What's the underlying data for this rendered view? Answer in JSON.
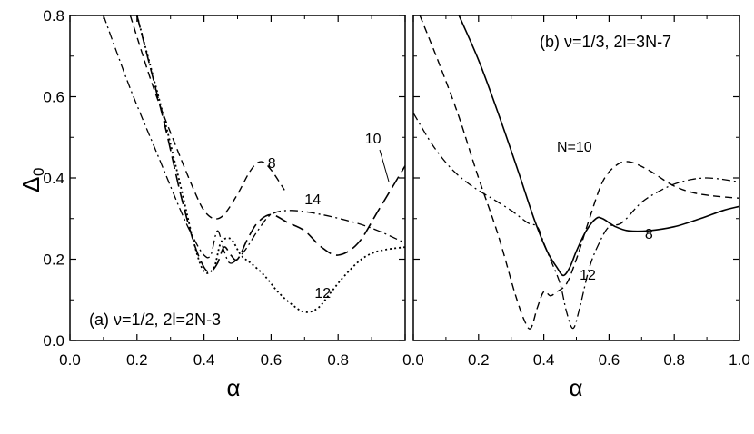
{
  "chart_data": [
    {
      "type": "line",
      "panel": "a",
      "panel_label": "(a) ν=1/2, 2l=2N-3",
      "xlabel": "α",
      "ylabel": "Δ",
      "ylabel_sub": "0",
      "xlim": [
        0.0,
        1.0
      ],
      "ylim": [
        0.0,
        0.8
      ],
      "x_ticks": [
        "0.0",
        "0.2",
        "0.4",
        "0.6",
        "0.8"
      ],
      "y_ticks": [
        "0.0",
        "0.2",
        "0.4",
        "0.6",
        "0.8"
      ],
      "grid": false,
      "series": [
        {
          "name": "8",
          "style": "dashed",
          "x": [
            0.18,
            0.25,
            0.32,
            0.37,
            0.4,
            0.43,
            0.46,
            0.5,
            0.54,
            0.57,
            0.6,
            0.64
          ],
          "y": [
            0.8,
            0.62,
            0.47,
            0.37,
            0.32,
            0.3,
            0.31,
            0.36,
            0.42,
            0.44,
            0.42,
            0.37
          ]
        },
        {
          "name": "10",
          "style": "dash-dot",
          "x": [
            0.1,
            0.18,
            0.26,
            0.33,
            0.37,
            0.4,
            0.42,
            0.44,
            0.46,
            0.48,
            0.52,
            0.56,
            0.6,
            0.66,
            0.75,
            0.85,
            0.92,
            1.0
          ],
          "y": [
            0.8,
            0.62,
            0.46,
            0.32,
            0.25,
            0.21,
            0.21,
            0.27,
            0.22,
            0.19,
            0.22,
            0.27,
            0.31,
            0.32,
            0.31,
            0.29,
            0.27,
            0.24
          ]
        },
        {
          "name": "12",
          "style": "dotted",
          "x": [
            0.2,
            0.28,
            0.33,
            0.37,
            0.4,
            0.43,
            0.45,
            0.48,
            0.51,
            0.54,
            0.58,
            0.62,
            0.66,
            0.7,
            0.74,
            0.78,
            0.82,
            0.87,
            0.92,
            1.0
          ],
          "y": [
            0.8,
            0.55,
            0.38,
            0.24,
            0.17,
            0.18,
            0.24,
            0.25,
            0.21,
            0.19,
            0.16,
            0.12,
            0.09,
            0.07,
            0.08,
            0.12,
            0.16,
            0.2,
            0.22,
            0.23
          ]
        },
        {
          "name": "14",
          "style": "long-dash",
          "x": [
            0.2,
            0.28,
            0.33,
            0.37,
            0.4,
            0.42,
            0.44,
            0.46,
            0.48,
            0.5,
            0.53,
            0.56,
            0.6,
            0.65,
            0.7,
            0.75,
            0.8,
            0.86,
            0.92,
            1.0
          ],
          "y": [
            0.8,
            0.54,
            0.36,
            0.24,
            0.18,
            0.17,
            0.19,
            0.23,
            0.21,
            0.2,
            0.25,
            0.29,
            0.31,
            0.29,
            0.27,
            0.23,
            0.21,
            0.24,
            0.32,
            0.43
          ]
        }
      ],
      "curve_labels": [
        {
          "text": "8",
          "x": 0.59,
          "y": 0.425
        },
        {
          "text": "10",
          "x": 0.88,
          "y": 0.485
        },
        {
          "text": "14",
          "x": 0.7,
          "y": 0.335
        },
        {
          "text": "12",
          "x": 0.73,
          "y": 0.105
        }
      ]
    },
    {
      "type": "line",
      "panel": "b",
      "panel_label": "(b) ν=1/3, 2l=3N-7",
      "xlabel": "α",
      "xlim": [
        0.0,
        1.0
      ],
      "ylim": [
        0.0,
        0.8
      ],
      "x_ticks": [
        "0.0",
        "0.2",
        "0.4",
        "0.6",
        "0.8",
        "1.0"
      ],
      "grid": false,
      "series": [
        {
          "name": "N=10",
          "style": "dashed",
          "x": [
            0.02,
            0.08,
            0.14,
            0.2,
            0.26,
            0.31,
            0.34,
            0.36,
            0.38,
            0.4,
            0.42,
            0.44,
            0.47,
            0.5,
            0.54,
            0.58,
            0.62,
            0.66,
            0.72,
            0.8,
            0.88,
            1.0
          ],
          "y": [
            0.8,
            0.68,
            0.55,
            0.4,
            0.26,
            0.12,
            0.05,
            0.03,
            0.08,
            0.12,
            0.11,
            0.12,
            0.14,
            0.2,
            0.3,
            0.39,
            0.43,
            0.44,
            0.42,
            0.38,
            0.36,
            0.35
          ]
        },
        {
          "name": "8",
          "style": "solid",
          "x": [
            0.14,
            0.2,
            0.26,
            0.32,
            0.37,
            0.41,
            0.44,
            0.46,
            0.48,
            0.5,
            0.53,
            0.56,
            0.58,
            0.62,
            0.66,
            0.72,
            0.8,
            0.88,
            0.95,
            1.0
          ],
          "y": [
            0.8,
            0.69,
            0.56,
            0.42,
            0.3,
            0.22,
            0.18,
            0.16,
            0.18,
            0.22,
            0.27,
            0.3,
            0.3,
            0.28,
            0.27,
            0.27,
            0.28,
            0.3,
            0.32,
            0.33
          ]
        },
        {
          "name": "12",
          "style": "dash-dot",
          "x": [
            0.0,
            0.06,
            0.12,
            0.18,
            0.24,
            0.3,
            0.35,
            0.38,
            0.4,
            0.42,
            0.45,
            0.47,
            0.49,
            0.51,
            0.54,
            0.57,
            0.6,
            0.64,
            0.7,
            0.76,
            0.82,
            0.9,
            1.0
          ],
          "y": [
            0.56,
            0.48,
            0.42,
            0.38,
            0.35,
            0.32,
            0.29,
            0.28,
            0.24,
            0.2,
            0.14,
            0.07,
            0.03,
            0.08,
            0.18,
            0.24,
            0.28,
            0.29,
            0.34,
            0.37,
            0.39,
            0.4,
            0.39
          ]
        }
      ],
      "curve_labels": [
        {
          "text": "N=10",
          "x": 0.44,
          "y": 0.465
        },
        {
          "text": "8",
          "x": 0.71,
          "y": 0.25
        },
        {
          "text": "12",
          "x": 0.51,
          "y": 0.15
        }
      ]
    }
  ]
}
